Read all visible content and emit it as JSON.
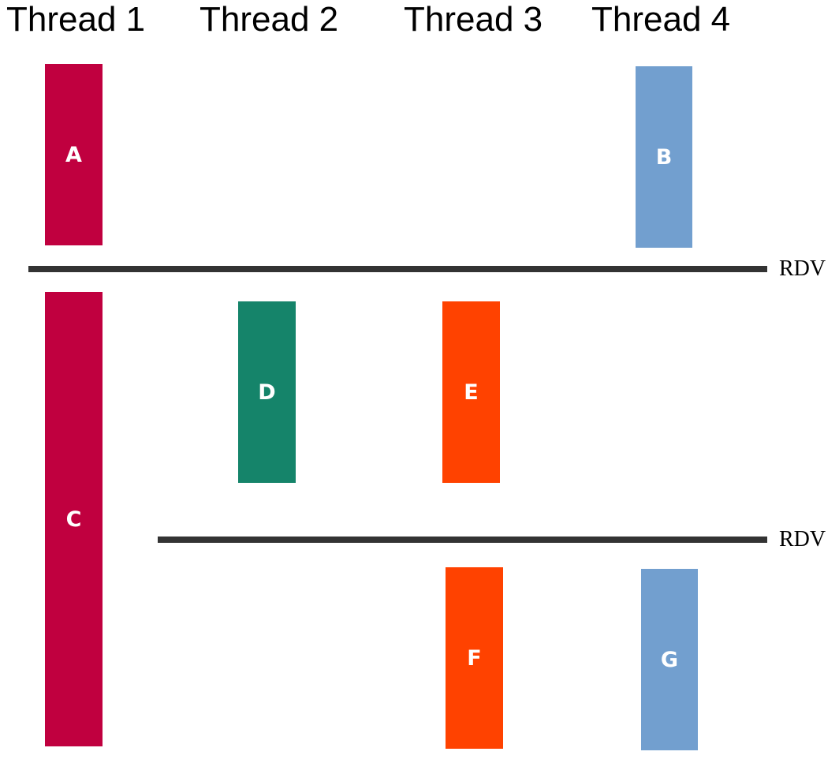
{
  "colors": {
    "thread1": "#c0003f",
    "thread2": "#15846a",
    "thread3": "#ff4200",
    "thread4": "#729fcf",
    "barrier": "#333333"
  },
  "threads": [
    {
      "label": "Thread 1"
    },
    {
      "label": "Thread 2"
    },
    {
      "label": "Thread 3"
    },
    {
      "label": "Thread 4"
    }
  ],
  "tasks": [
    {
      "label": "A",
      "thread": 1
    },
    {
      "label": "B",
      "thread": 4
    },
    {
      "label": "C",
      "thread": 1
    },
    {
      "label": "D",
      "thread": 2
    },
    {
      "label": "E",
      "thread": 3
    },
    {
      "label": "F",
      "thread": 3
    },
    {
      "label": "G",
      "thread": 4
    }
  ],
  "barriers": [
    {
      "label": "RDV"
    },
    {
      "label": "RDV"
    }
  ]
}
